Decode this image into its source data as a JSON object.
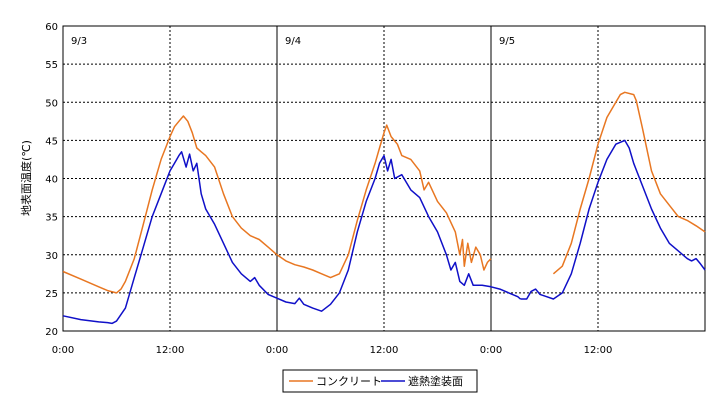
{
  "chart_data": {
    "type": "line",
    "title": "",
    "xlabel": "",
    "ylabel": "地表面温度(℃)",
    "ylim": [
      20,
      60
    ],
    "yticks": [
      20,
      25,
      30,
      35,
      40,
      45,
      50,
      55,
      60
    ],
    "xlim_hours": [
      0,
      72
    ],
    "xtick_labels": [
      "0:00",
      "12:00",
      "0:00",
      "12:00",
      "0:00",
      "12:00"
    ],
    "day_labels": [
      "9/3",
      "9/4",
      "9/5"
    ],
    "grid": "dotted",
    "legend_position": "bottom-center",
    "series": [
      {
        "name": "コンクリート",
        "color": "#E87722",
        "segments": [
          [
            [
              0,
              27.8
            ],
            [
              2,
              26.8
            ],
            [
              4,
              25.8
            ],
            [
              5,
              25.3
            ],
            [
              6,
              25.0
            ],
            [
              6.5,
              25.5
            ],
            [
              7,
              26.5
            ],
            [
              8,
              29.5
            ],
            [
              9,
              34
            ],
            [
              10,
              38.5
            ],
            [
              11,
              42.5
            ],
            [
              12,
              45.5
            ],
            [
              12.5,
              46.8
            ],
            [
              13,
              47.5
            ],
            [
              13.5,
              48.2
            ],
            [
              14,
              47.5
            ],
            [
              14.5,
              46
            ],
            [
              15,
              44
            ],
            [
              15.5,
              43.5
            ],
            [
              16,
              43
            ],
            [
              17,
              41.5
            ],
            [
              18,
              38
            ],
            [
              19,
              35
            ],
            [
              20,
              33.5
            ],
            [
              21,
              32.5
            ],
            [
              22,
              32
            ],
            [
              23,
              31
            ],
            [
              24,
              30
            ],
            [
              25,
              29.2
            ],
            [
              26,
              28.7
            ],
            [
              27,
              28.4
            ],
            [
              28,
              28
            ],
            [
              29,
              27.5
            ],
            [
              30,
              27
            ],
            [
              31,
              27.5
            ],
            [
              32,
              30
            ],
            [
              33,
              34.5
            ],
            [
              34,
              38.5
            ],
            [
              35,
              42
            ],
            [
              35.5,
              44
            ],
            [
              36,
              46
            ],
            [
              36.3,
              47
            ],
            [
              36.8,
              45.5
            ],
            [
              37.5,
              44.5
            ],
            [
              38,
              43
            ],
            [
              39,
              42.5
            ],
            [
              40,
              41
            ],
            [
              40.5,
              38.5
            ],
            [
              41,
              39.5
            ],
            [
              42,
              37
            ],
            [
              43,
              35.5
            ],
            [
              44,
              33
            ],
            [
              44.5,
              30
            ],
            [
              44.8,
              32
            ],
            [
              45,
              28.5
            ],
            [
              45.4,
              31.5
            ],
            [
              45.8,
              29
            ],
            [
              46.3,
              31
            ],
            [
              46.8,
              30
            ],
            [
              47.2,
              28
            ],
            [
              47.6,
              29
            ],
            [
              48,
              29.5
            ]
          ],
          [
            [
              55,
              27.5
            ],
            [
              56,
              28.5
            ],
            [
              57,
              31.5
            ],
            [
              58,
              36
            ],
            [
              59,
              40
            ],
            [
              60,
              44.5
            ],
            [
              61,
              48
            ],
            [
              62,
              50
            ],
            [
              62.5,
              51
            ],
            [
              63,
              51.3
            ],
            [
              64,
              51
            ],
            [
              64.3,
              50.2
            ],
            [
              65,
              46.5
            ],
            [
              66,
              41
            ],
            [
              67,
              38
            ],
            [
              68,
              36.5
            ],
            [
              69,
              35
            ],
            [
              70,
              34.5
            ],
            [
              71,
              33.8
            ],
            [
              72,
              33
            ]
          ]
        ]
      },
      {
        "name": "遮熱塗装面",
        "color": "#1010C8",
        "segments": [
          [
            [
              0,
              22
            ],
            [
              2,
              21.5
            ],
            [
              4,
              21.2
            ],
            [
              5,
              21.1
            ],
            [
              5.5,
              21.0
            ],
            [
              6,
              21.3
            ],
            [
              7,
              23
            ],
            [
              8,
              27
            ],
            [
              9,
              31
            ],
            [
              10,
              35
            ],
            [
              11,
              38
            ],
            [
              12,
              41
            ],
            [
              12.5,
              42
            ],
            [
              13,
              43
            ],
            [
              13.3,
              43.5
            ],
            [
              13.8,
              41.5
            ],
            [
              14.2,
              43.2
            ],
            [
              14.6,
              41
            ],
            [
              15,
              42
            ],
            [
              15.5,
              38
            ],
            [
              16,
              36
            ],
            [
              17,
              34
            ],
            [
              18,
              31.5
            ],
            [
              19,
              29
            ],
            [
              20,
              27.5
            ],
            [
              21,
              26.5
            ],
            [
              21.5,
              27
            ],
            [
              22,
              26
            ],
            [
              23,
              24.8
            ],
            [
              24,
              24.3
            ],
            [
              25,
              23.8
            ],
            [
              26,
              23.6
            ],
            [
              26.5,
              24.3
            ],
            [
              27,
              23.5
            ],
            [
              28,
              23
            ],
            [
              29,
              22.6
            ],
            [
              30,
              23.5
            ],
            [
              31,
              25
            ],
            [
              32,
              28
            ],
            [
              33,
              33
            ],
            [
              34,
              37
            ],
            [
              35,
              40
            ],
            [
              35.5,
              42
            ],
            [
              36,
              43
            ],
            [
              36.4,
              41
            ],
            [
              36.8,
              42.5
            ],
            [
              37.2,
              40
            ],
            [
              38,
              40.5
            ],
            [
              39,
              38.5
            ],
            [
              40,
              37.5
            ],
            [
              41,
              35
            ],
            [
              42,
              33
            ],
            [
              43,
              30
            ],
            [
              43.5,
              28
            ],
            [
              44,
              29
            ],
            [
              44.5,
              26.5
            ],
            [
              45,
              26
            ],
            [
              45.5,
              27.5
            ],
            [
              46,
              26
            ],
            [
              47,
              26
            ],
            [
              48,
              25.8
            ],
            [
              49,
              25.5
            ],
            [
              50,
              25
            ],
            [
              51,
              24.5
            ],
            [
              51.3,
              24.2
            ]
          ],
          [
            [
              51.3,
              24.2
            ],
            [
              52,
              24.2
            ],
            [
              52.5,
              25.2
            ],
            [
              53,
              25.5
            ],
            [
              53.5,
              24.8
            ],
            [
              54,
              24.6
            ],
            [
              55,
              24.2
            ],
            [
              56,
              25
            ],
            [
              57,
              27.5
            ],
            [
              58,
              31.5
            ],
            [
              59,
              36
            ],
            [
              60,
              39.5
            ],
            [
              61,
              42.5
            ],
            [
              62,
              44.5
            ],
            [
              63,
              45
            ],
            [
              63.5,
              44
            ],
            [
              64,
              42
            ],
            [
              65,
              39
            ],
            [
              66,
              36
            ],
            [
              67,
              33.5
            ],
            [
              68,
              31.5
            ],
            [
              69,
              30.5
            ],
            [
              70,
              29.5
            ],
            [
              70.5,
              29.2
            ],
            [
              71,
              29.5
            ],
            [
              71.5,
              28.8
            ],
            [
              72,
              28
            ]
          ]
        ]
      }
    ]
  }
}
